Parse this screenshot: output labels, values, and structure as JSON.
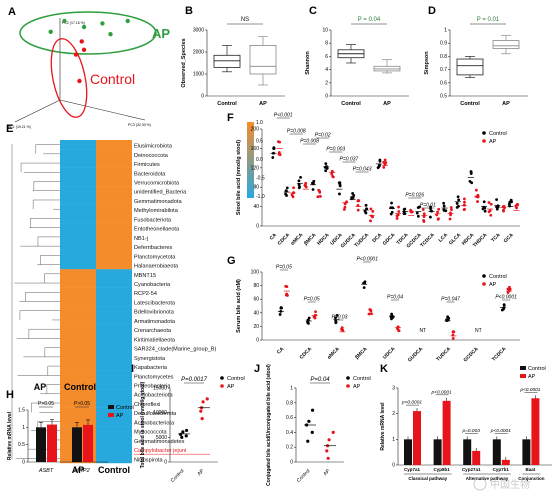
{
  "colors": {
    "control": "#000000",
    "ap": "#e8141b",
    "pca_ap": "#2e9e3e",
    "heat_hi": "#f48c2c",
    "heat_lo": "#27a9de"
  },
  "panelA": {
    "letter": "A",
    "axis_labels": [
      "PC2 (17.16 %)",
      "PC1 (19.21 %)",
      "PC3 (32.30 %)"
    ],
    "group_ap": "AP",
    "group_control": "Control",
    "ap_points": [
      [
        0.18,
        0.14
      ],
      [
        0.3,
        0.05
      ],
      [
        0.47,
        0.1
      ],
      [
        0.63,
        0.07
      ],
      [
        0.85,
        0.05
      ],
      [
        0.7,
        0.16
      ]
    ],
    "control_points": [
      [
        0.45,
        0.22
      ],
      [
        0.4,
        0.33
      ],
      [
        0.47,
        0.29
      ],
      [
        0.43,
        0.55
      ]
    ]
  },
  "chart_data": [
    {
      "panel": "B",
      "type": "box",
      "ylabel": "Observed_Species",
      "categories": [
        "Control",
        "AP"
      ],
      "series": [
        {
          "name": "Control",
          "q": [
            1100,
            1300,
            1600,
            1850,
            2300
          ]
        },
        {
          "name": "AP",
          "q": [
            500,
            1000,
            1350,
            2300,
            2700
          ]
        }
      ],
      "ylim": [
        0,
        3000
      ],
      "annotation": "NS"
    },
    {
      "panel": "C",
      "type": "box",
      "ylabel": "Shannon",
      "categories": [
        "Control",
        "AP"
      ],
      "series": [
        {
          "name": "Control",
          "q": [
            5.0,
            5.8,
            6.4,
            7.0,
            7.8
          ]
        },
        {
          "name": "AP",
          "q": [
            3.5,
            3.8,
            4.1,
            4.5,
            5.5
          ]
        }
      ],
      "ylim": [
        0,
        10
      ],
      "yticks": [
        0,
        2,
        4,
        6,
        8,
        10
      ],
      "annotation": "P = 0.04"
    },
    {
      "panel": "D",
      "type": "box",
      "ylabel": "Simpson",
      "categories": [
        "Control",
        "AP"
      ],
      "series": [
        {
          "name": "Control",
          "q": [
            0.64,
            0.66,
            0.73,
            0.78,
            0.8
          ]
        },
        {
          "name": "AP",
          "q": [
            0.82,
            0.86,
            0.88,
            0.92,
            0.96
          ]
        }
      ],
      "ylim": [
        0.5,
        1.0
      ],
      "yticks": [
        0.5,
        0.6,
        0.7,
        0.8,
        0.9,
        1.0
      ],
      "annotation": "P = 0.01"
    },
    {
      "panel": "E",
      "type": "heatmap",
      "taxa": [
        "Elusimicrobiota",
        "Deinococcota",
        "Firmicutes",
        "Bacteroidota",
        "Verrucomicrobiota",
        "unidentified_Bacteria",
        "Gemmatimonadota",
        "Methylomirabilota",
        "Fusobacteriota",
        "Entotheonellaeota",
        "NB1-j",
        "Deferribacteres",
        "Planctomycetota",
        "Halanaerobiaeota",
        "MBNT15",
        "Cyanobacteria",
        "RCP2-54",
        "Latescibacterota",
        "Bdellovibrionota",
        "Armatimonadota",
        "Crenarchaeota",
        "Kiritimatiellaeota",
        "SAR324_clade(Marine_group_B)",
        "Synergistota",
        "Kapabacteria",
        "Planctomycetes",
        "Proteobacteria",
        "Acidobacteriota",
        "Chloroflexi",
        "Desulfobacterota",
        "Actinobacteriota",
        "Myxococcota",
        "Gemmatimonadetes",
        "Campylobacter jejuni",
        "Nitrospirota"
      ],
      "highlight": "Campylobacter jejuni",
      "split_index": 14,
      "groups": [
        "AP",
        "Control"
      ],
      "scale": [
        -1.0,
        -0.5,
        0.0,
        0.5,
        1.0
      ]
    },
    {
      "panel": "F",
      "type": "scatter",
      "ylabel": "Stool bile acid (nmol/g stool)",
      "ylim": [
        0,
        200
      ],
      "yticks": [
        0,
        40,
        80,
        120,
        160,
        200
      ],
      "categories": [
        "CA",
        "CDCA",
        "αMCA",
        "βMCA",
        "HDCA",
        "UDCA",
        "GUDCA",
        "TUDCA",
        "DCA",
        "GDCA",
        "TDCA",
        "GCDCA",
        "TCDCA",
        "LCA",
        "GLCA",
        "HDCA",
        "THDCA",
        "TCA",
        "GCA"
      ],
      "control_means": [
        150,
        70,
        88,
        85,
        122,
        76,
        55,
        33,
        128,
        36,
        30,
        30,
        30,
        37,
        50,
        100,
        40,
        42,
        40
      ],
      "ap_means": [
        160,
        68,
        76,
        60,
        110,
        48,
        40,
        22,
        125,
        26,
        22,
        22,
        25,
        26,
        42,
        60,
        35,
        38,
        32
      ],
      "legend": [
        "Control",
        "AP"
      ],
      "pvalues": [
        {
          "text": "P<0.001",
          "i": [
            0,
            1
          ]
        },
        {
          "text": "P=0.008",
          "i": [
            1,
            2
          ]
        },
        {
          "text": "P=0.008",
          "i": [
            2,
            3
          ]
        },
        {
          "text": "P=0.02",
          "i": [
            3,
            4
          ]
        },
        {
          "text": "P=0.003",
          "i": [
            4,
            5
          ]
        },
        {
          "text": "P=0.037",
          "i": [
            5,
            6
          ]
        },
        {
          "text": "P=0.043",
          "i": [
            6,
            7
          ]
        },
        {
          "text": "P=0.026",
          "i": [
            10,
            11
          ]
        },
        {
          "text": "P=0.01",
          "i": [
            11,
            12
          ]
        }
      ]
    },
    {
      "panel": "G",
      "type": "scatter",
      "ylabel": "Serum bile acid (nM)",
      "ylim": [
        0,
        100
      ],
      "yticks": [
        0,
        20,
        40,
        60,
        80,
        100
      ],
      "categories": [
        "CA",
        "CDCA",
        "αMCA",
        "βMCA",
        "UDCA",
        "GUDCA",
        "TUDCA",
        "GCDCA",
        "TCDCA"
      ],
      "control_means": [
        42,
        28,
        30,
        82,
        35,
        0,
        28,
        0,
        48
      ],
      "ap_means": [
        72,
        36,
        12,
        38,
        18,
        0,
        6,
        0,
        72
      ],
      "nt": [
        "GUDCA",
        "GCDCA"
      ],
      "legend": [
        "Control",
        "AP"
      ],
      "pvalues": [
        {
          "text": "P=0.05",
          "i": 0
        },
        {
          "text": "P=0.05",
          "i": 1
        },
        {
          "text": "P=0.03",
          "i": 2
        },
        {
          "text": "P<0.0001",
          "i": 3
        },
        {
          "text": "P=0.04",
          "i": 4
        },
        {
          "text": "P=0.047",
          "i": 6
        },
        {
          "text": "P<0.0001",
          "i": 8
        }
      ]
    },
    {
      "panel": "H",
      "type": "bar",
      "ylabel": "Relative mRNA level",
      "categories": [
        "ASBT",
        "MRP2"
      ],
      "series": [
        {
          "name": "Control",
          "values": [
            1.0,
            1.0
          ]
        },
        {
          "name": "AP",
          "values": [
            1.08,
            1.07
          ]
        }
      ],
      "ylim": [
        0,
        1.5
      ],
      "yticks": [
        0,
        0.5,
        1.0,
        1.5
      ],
      "annotation": [
        "P>0.05",
        "P>0.05"
      ],
      "groups": [
        "AP",
        "Control"
      ]
    },
    {
      "panel": "I",
      "type": "scatter",
      "ylabel": "Total bile acid in stool (nmol/g stool)",
      "categories": [
        "Control",
        "AP"
      ],
      "series": [
        {
          "name": "Control",
          "values": [
            5000,
            5300,
            5600,
            6100,
            6400
          ],
          "mean": 5700
        },
        {
          "name": "AP",
          "values": [
            8800,
            10300,
            11000,
            12200,
            12800
          ],
          "mean": 11000
        }
      ],
      "ylim": [
        0,
        15000
      ],
      "yticks": [
        0,
        5000,
        10000,
        15000
      ],
      "annotation": "P=0.0017"
    },
    {
      "panel": "J",
      "type": "scatter",
      "ylabel": "Conjugated bile acid/Unconjugated bile acid (stool)",
      "categories": [
        "Control",
        "AP"
      ],
      "series": [
        {
          "name": "Control",
          "values": [
            0.28,
            0.4,
            0.5,
            0.55,
            0.7
          ],
          "mean": 0.5
        },
        {
          "name": "AP",
          "values": [
            0.05,
            0.15,
            0.22,
            0.3,
            0.4
          ],
          "mean": 0.22
        }
      ],
      "ylim": [
        0,
        1.0
      ],
      "yticks": [
        0,
        0.2,
        0.4,
        0.6,
        0.8,
        1.0
      ],
      "annotation": "P=0.04"
    },
    {
      "panel": "K",
      "type": "bar",
      "ylabel": "Relative mRNA level",
      "categories": [
        "Cyp7a1",
        "Cyp8b1",
        "Cyp27a1",
        "Cyp7b1",
        "Baat"
      ],
      "series": [
        {
          "name": "Control",
          "values": [
            1.0,
            1.0,
            1.0,
            1.0,
            1.0
          ]
        },
        {
          "name": "AP",
          "values": [
            2.1,
            2.5,
            0.55,
            0.2,
            2.6
          ]
        }
      ],
      "ylim": [
        0,
        3
      ],
      "yticks": [
        0,
        1,
        2,
        3
      ],
      "annotation": [
        "p<0.0001",
        "p<0.0001",
        "p=0.003",
        "p<0.0001",
        "p<0.0001"
      ],
      "pathways": [
        {
          "label": "Classical pathway",
          "from": 0,
          "to": 1
        },
        {
          "label": "Alternative pathway",
          "from": 2,
          "to": 3
        },
        {
          "label": "Conjunction",
          "from": 4,
          "to": 4
        }
      ],
      "legend": [
        "Control",
        "AP"
      ]
    }
  ],
  "watermark": "中国生物"
}
